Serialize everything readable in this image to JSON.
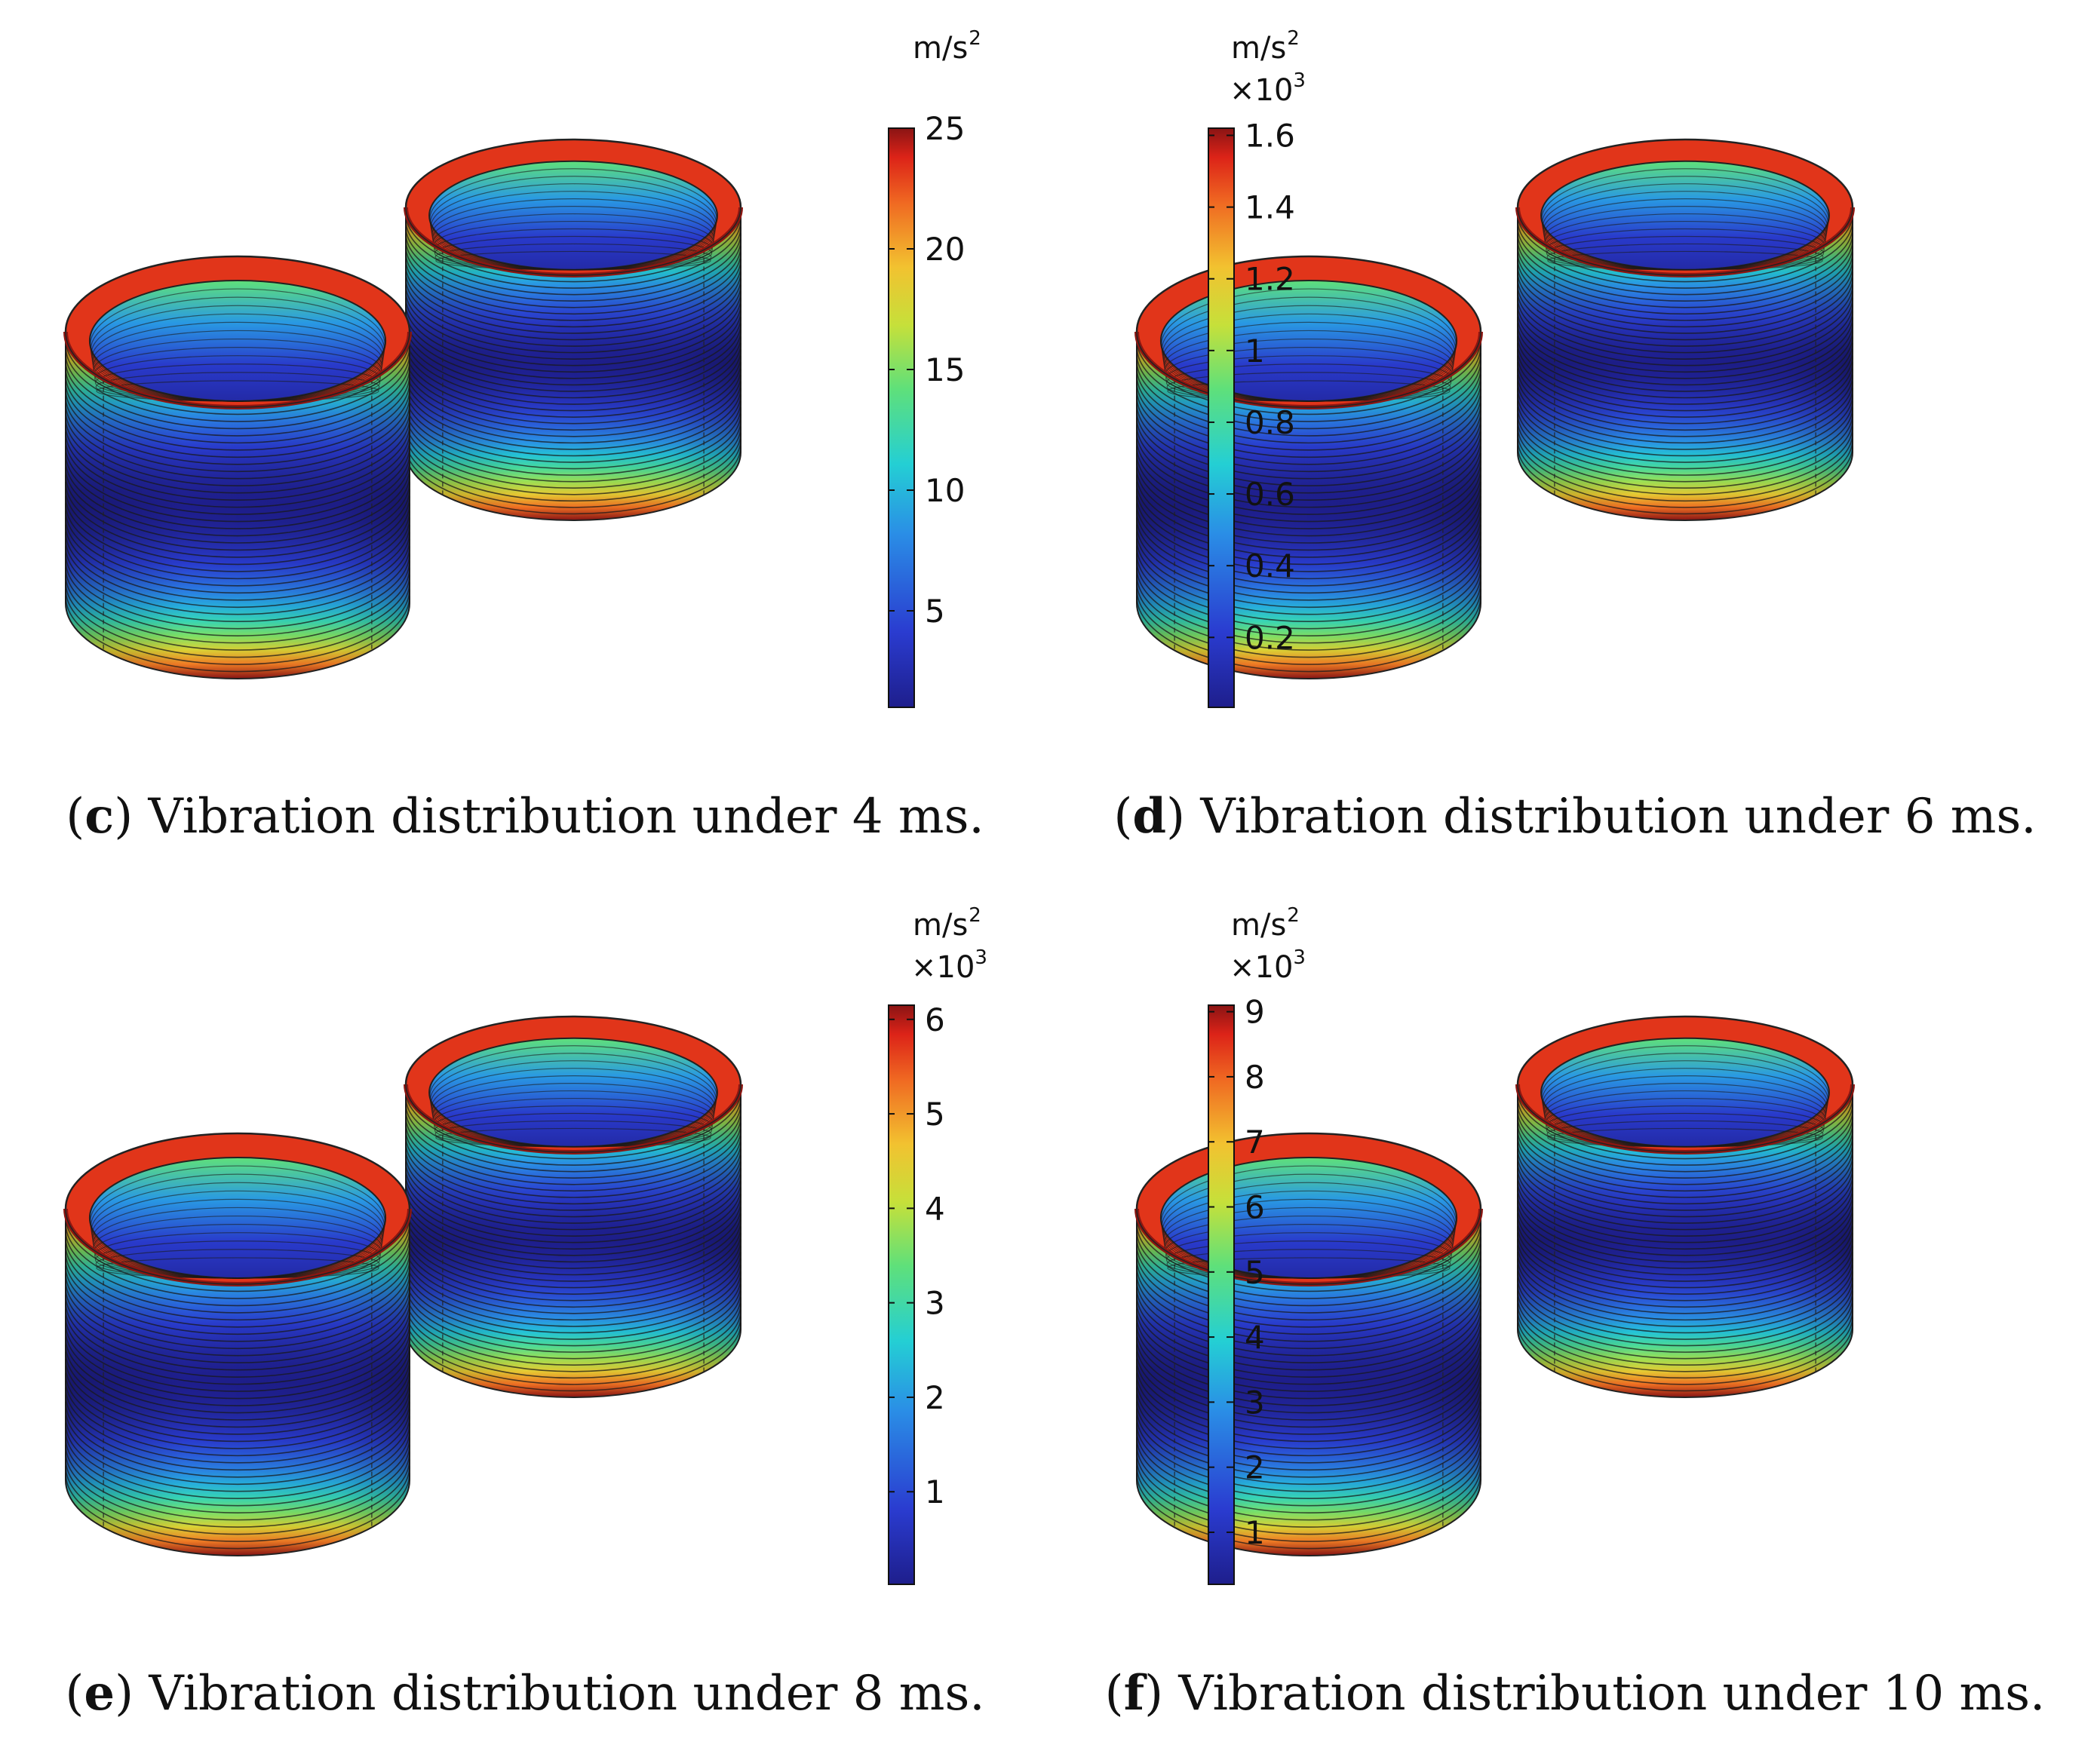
{
  "panels": [
    {
      "id": "c",
      "caption_letter": "c",
      "caption_text": "Vibration distribution under 4 ms.",
      "unit_base": "m/s",
      "unit_exp": "2",
      "multiplier_base": "",
      "multiplier_exp": "",
      "colorbar": {
        "min": 1,
        "max": 25,
        "ticks": [
          "5",
          "10",
          "15",
          "20",
          "25"
        ],
        "tick_values": [
          5,
          10,
          15,
          20,
          25
        ]
      }
    },
    {
      "id": "d",
      "caption_letter": "d",
      "caption_text": "Vibration distribution under 6 ms.",
      "unit_base": "m/s",
      "unit_exp": "2",
      "multiplier_base": "×10",
      "multiplier_exp": "3",
      "colorbar": {
        "min": 0.005,
        "max": 1.62,
        "ticks": [
          "0.2",
          "0.4",
          "0.6",
          "0.8",
          "1",
          "1.2",
          "1.4",
          "1.6"
        ],
        "tick_values": [
          0.2,
          0.4,
          0.6,
          0.8,
          1,
          1.2,
          1.4,
          1.6
        ]
      }
    },
    {
      "id": "e",
      "caption_letter": "e",
      "caption_text": "Vibration distribution under 8 ms.",
      "unit_base": "m/s",
      "unit_exp": "2",
      "multiplier_base": "×10",
      "multiplier_exp": "3",
      "colorbar": {
        "min": 0.02,
        "max": 6.15,
        "ticks": [
          "1",
          "2",
          "3",
          "4",
          "5",
          "6"
        ],
        "tick_values": [
          1,
          2,
          3,
          4,
          5,
          6
        ]
      }
    },
    {
      "id": "f",
      "caption_letter": "f",
      "caption_text": "Vibration distribution under 10 ms.",
      "unit_base": "m/s",
      "unit_exp": "2",
      "multiplier_base": "×10",
      "multiplier_exp": "3",
      "colorbar": {
        "min": 0.2,
        "max": 9.1,
        "ticks": [
          "1",
          "2",
          "3",
          "4",
          "5",
          "6",
          "7",
          "8",
          "9"
        ],
        "tick_values": [
          1,
          2,
          3,
          4,
          5,
          6,
          7,
          8,
          9
        ]
      }
    }
  ]
}
